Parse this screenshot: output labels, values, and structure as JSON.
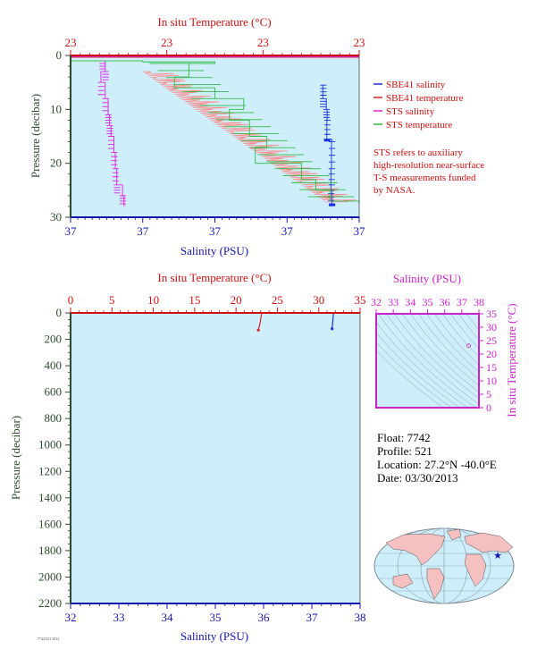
{
  "colors": {
    "plot_bg": "#cdeefa",
    "salinity_axis": "#1515b0",
    "temperature_axis": "#d01010",
    "pressure_axis": "#2c4a2c",
    "ts_axis": "#cc22cc",
    "sbe_salinity": "#1a30e0",
    "sbe_temperature": "#e02020",
    "sts_salinity": "#dd22dd",
    "sts_temperature": "#33bb44",
    "sts_temperature_alt": "#ff8888",
    "land": "#f6c0c0",
    "ocean": "#cdeefa"
  },
  "top_chart": {
    "temp_title": "In situ Temperature (°C)",
    "temp_ticks": [
      "23",
      "23",
      "23",
      "23"
    ],
    "sal_ticks": [
      "37",
      "37",
      "37",
      "37",
      "37"
    ],
    "sal_label": "Salinity (PSU)",
    "pressure_label": "Pressure (decibar)",
    "pressure_ticks": [
      "0",
      "10",
      "20",
      "30"
    ],
    "legend": [
      {
        "label": "SBE41 salinity",
        "color": "#1a30e0"
      },
      {
        "label": "SBE41 temperature",
        "color": "#e02020"
      },
      {
        "label": "STS salinity",
        "color": "#dd22dd"
      },
      {
        "label": "STS temperature",
        "color": "#33bb44"
      }
    ],
    "note": [
      "STS refers to auxiliary",
      "high-resolution near-surface",
      "T-S measurements funded",
      "by NASA."
    ]
  },
  "bottom_chart": {
    "temp_title": "In situ Temperature (°C)",
    "temp_ticks": [
      "0",
      "5",
      "10",
      "15",
      "20",
      "25",
      "30",
      "35"
    ],
    "sal_ticks": [
      "32",
      "33",
      "34",
      "35",
      "36",
      "37",
      "38"
    ],
    "sal_label": "Salinity (PSU)",
    "pressure_label": "Pressure (decibar)",
    "pressure_ticks": [
      "0",
      "200",
      "400",
      "600",
      "800",
      "1000",
      "1200",
      "1400",
      "1600",
      "1800",
      "2000",
      "2200"
    ]
  },
  "ts_chart": {
    "sal_title": "Salinity (PSU)",
    "sal_ticks": [
      "32",
      "33",
      "34",
      "35",
      "36",
      "37",
      "38"
    ],
    "temp_label": "In situ Temperature (°C)",
    "temp_ticks": [
      "0",
      "5",
      "10",
      "15",
      "20",
      "25",
      "30",
      "35"
    ]
  },
  "info": {
    "float": "Float:  7742",
    "profile": "Profile:  521",
    "location": "Location:  27.2°N  -40.0°E",
    "date": "Date:  03/30/2013"
  },
  "footer_stamp": "7742/521 2013",
  "chart_data": [
    {
      "type": "line",
      "title": "",
      "xlabel": "Salinity (PSU)",
      "x2label": "In situ Temperature (°C)",
      "ylabel": "Pressure (decibar)",
      "ylim": [
        0,
        30
      ],
      "series": [
        {
          "name": "SBE41 salinity",
          "points": [
            [
              0.875,
              5.5
            ],
            [
              0.874,
              8
            ],
            [
              0.886,
              10
            ],
            [
              0.889,
              12
            ],
            [
              0.888,
              15.5
            ],
            [
              0.905,
              16
            ],
            [
              0.904,
              21
            ],
            [
              0.902,
              25
            ],
            [
              0.905,
              27.5
            ],
            [
              0.903,
              28
            ]
          ]
        },
        {
          "name": "SBE41 temperature",
          "points": [
            [
              0.0,
              0
            ],
            [
              1.0,
              0
            ]
          ]
        },
        {
          "name": "STS salinity",
          "points": [
            [
              0.11,
              1
            ],
            [
              0.12,
              3
            ],
            [
              0.105,
              5
            ],
            [
              0.12,
              8
            ],
            [
              0.13,
              11
            ],
            [
              0.135,
              13
            ],
            [
              0.14,
              15
            ],
            [
              0.15,
              18
            ],
            [
              0.155,
              21
            ],
            [
              0.16,
              24
            ],
            [
              0.18,
              26
            ],
            [
              0.185,
              28
            ]
          ]
        },
        {
          "name": "STS temperature",
          "points": [
            [
              0.0,
              1
            ],
            [
              0.25,
              1.2
            ],
            [
              0.5,
              1.5
            ],
            [
              0.41,
              4
            ],
            [
              0.36,
              6
            ],
            [
              0.5,
              8
            ],
            [
              0.6,
              10
            ],
            [
              0.55,
              12
            ],
            [
              0.62,
              15
            ],
            [
              0.68,
              17
            ],
            [
              0.64,
              20
            ],
            [
              0.8,
              23
            ],
            [
              0.85,
              25
            ],
            [
              0.9,
              27
            ],
            [
              1.0,
              27.5
            ]
          ]
        }
      ]
    },
    {
      "type": "line",
      "xlabel": "Salinity (PSU)",
      "x2label": "In situ Temperature (°C)",
      "ylabel": "Pressure (decibar)",
      "xlim": [
        32,
        38
      ],
      "x2lim": [
        0,
        35
      ],
      "ylim": [
        2200,
        0
      ],
      "series": [
        {
          "name": "SBE41 salinity",
          "points": [
            [
              37.45,
              0
            ],
            [
              37.44,
              40
            ],
            [
              37.43,
              80
            ],
            [
              37.42,
              120
            ]
          ]
        },
        {
          "name": "SBE41 temperature",
          "points": [
            [
              23.1,
              0
            ],
            [
              23.0,
              40
            ],
            [
              22.9,
              80
            ],
            [
              22.7,
              130
            ]
          ]
        }
      ]
    },
    {
      "type": "scatter",
      "xlabel": "Salinity (PSU)",
      "ylabel": "In situ Temperature (°C)",
      "xlim": [
        32,
        38
      ],
      "ylim": [
        0,
        35
      ],
      "series": [
        {
          "name": "",
          "points": [
            [
              37.4,
              23.1
            ]
          ]
        }
      ]
    }
  ]
}
